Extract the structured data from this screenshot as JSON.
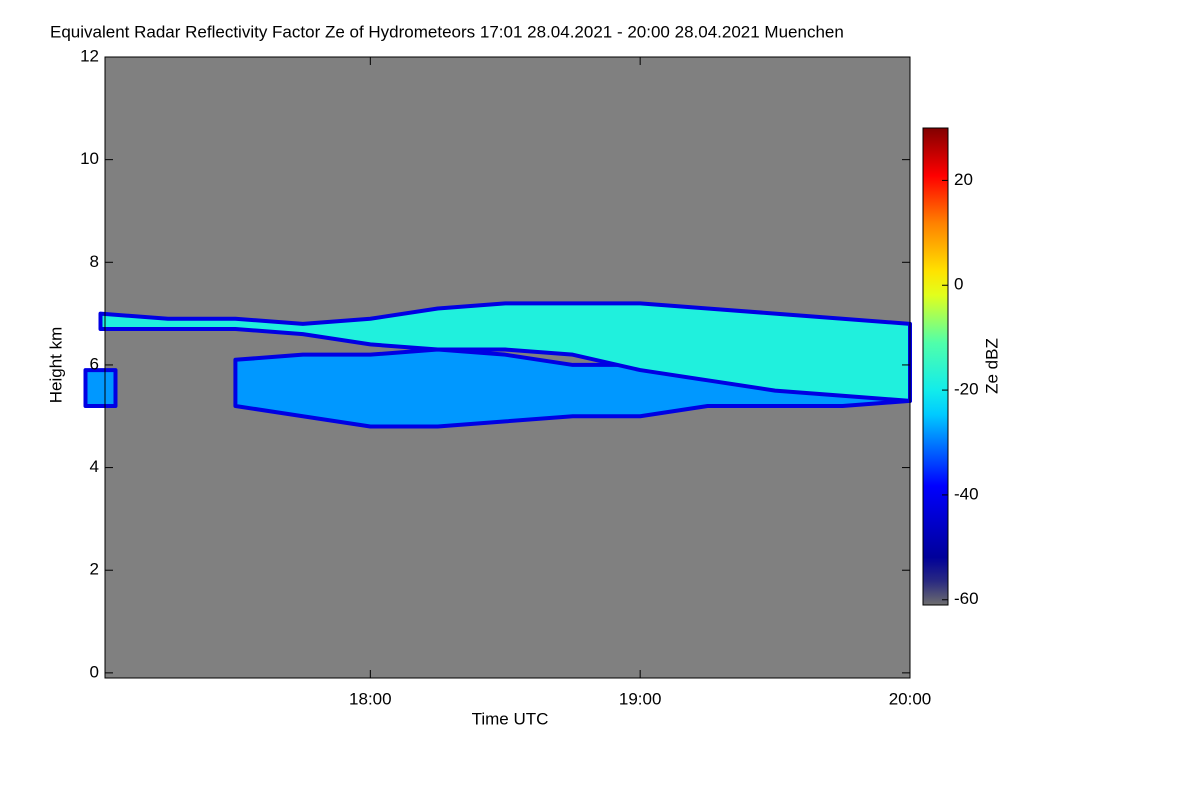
{
  "chart_data": {
    "type": "time-height",
    "title": "Equivalent Radar Reflectivity Factor Ze of Hydrometeors   17:01 28.04.2021 - 20:00 28.04.2021 Muenchen",
    "xlabel": "Time UTC",
    "ylabel": "Height km",
    "xlim": [
      17.0167,
      20.0
    ],
    "xticks": [
      {
        "value": 18,
        "label": "18:00"
      },
      {
        "value": 19,
        "label": "19:00"
      },
      {
        "value": 20,
        "label": "20:00"
      }
    ],
    "ylim": [
      -0.1,
      12
    ],
    "yticks": [
      0,
      2,
      4,
      6,
      8,
      10,
      12
    ],
    "background": "#808080",
    "x": [
      17.0,
      17.25,
      17.5,
      17.75,
      18.0,
      18.25,
      18.5,
      18.75,
      19.0,
      19.25,
      19.5,
      19.75,
      20.0
    ],
    "bands": [
      {
        "z": -28,
        "top": [
          5.9,
          null,
          6.1,
          6.2,
          6.2,
          6.3,
          6.2,
          6.0,
          6.0,
          6.0,
          6.0,
          6.0,
          6.0
        ],
        "base": [
          5.2,
          null,
          5.2,
          5.0,
          4.8,
          4.8,
          4.9,
          5.0,
          5.0,
          5.2,
          5.2,
          5.2,
          5.3
        ]
      },
      {
        "z": -18,
        "top": [
          7.0,
          6.9,
          6.9,
          6.8,
          6.9,
          7.1,
          7.2,
          7.2,
          7.2,
          7.1,
          7.0,
          6.9,
          6.8
        ],
        "base": [
          6.7,
          6.7,
          6.7,
          6.6,
          6.4,
          6.3,
          6.3,
          6.2,
          5.9,
          5.7,
          5.5,
          5.4,
          5.3
        ]
      }
    ],
    "colorbar": {
      "label": "Ze dBZ",
      "clim": [
        -61,
        30
      ],
      "ticks": [
        -60,
        -40,
        -20,
        0,
        20
      ]
    }
  }
}
